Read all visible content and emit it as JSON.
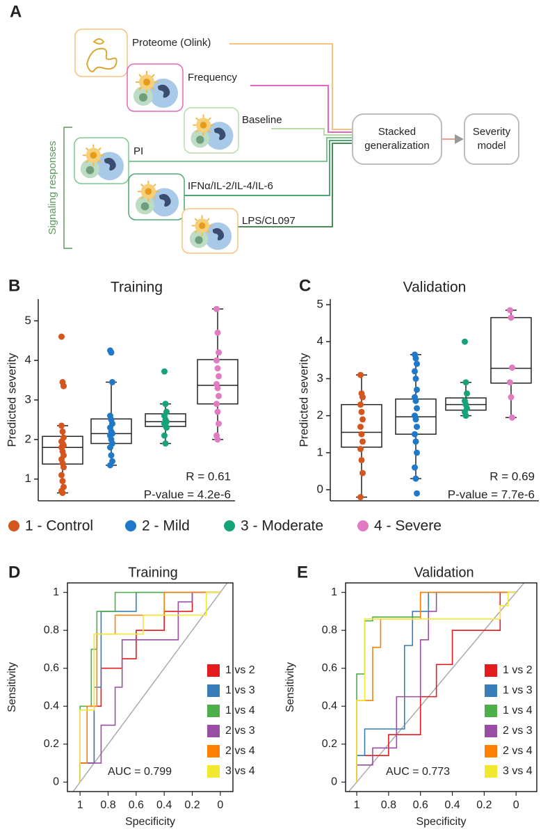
{
  "diagram": {
    "panel": "A",
    "nodes": [
      {
        "label": "Proteome (Olink)"
      },
      {
        "label": "Frequency"
      },
      {
        "label": "Baseline"
      },
      {
        "label": "PI"
      },
      {
        "label": "IFNα/IL-2/IL-4/IL-6"
      },
      {
        "label": "LPS/CL097"
      }
    ],
    "group_label": "Signaling responses",
    "combiner": [
      "Stacked",
      "generalization"
    ],
    "output": [
      "Severity",
      "model"
    ]
  },
  "groups": [
    {
      "name": "1 - Control",
      "color": "#d4561f"
    },
    {
      "name": "2 - Mild",
      "color": "#1f78c8"
    },
    {
      "name": "3 - Moderate",
      "color": "#16a37a"
    },
    {
      "name": "4 - Severe",
      "color": "#e17cc0"
    }
  ],
  "chart_data": [
    {
      "type": "box",
      "panel": "B",
      "title": "Training",
      "ylabel": "Predicted severity",
      "ylim": [
        0.45,
        5.55
      ],
      "yticks": [
        1,
        2,
        3,
        4,
        5
      ],
      "boxes": [
        {
          "q1": 1.38,
          "median": 1.8,
          "q3": 2.08,
          "whisker_low": 0.65,
          "whisker_high": 2.35,
          "points": [
            4.6,
            3.45,
            3.35,
            2.35,
            2.2,
            2.05,
            1.95,
            1.9,
            1.85,
            1.8,
            1.7,
            1.6,
            1.5,
            1.4,
            1.3,
            1.1,
            0.95,
            0.8,
            0.7,
            0.65
          ]
        },
        {
          "q1": 1.9,
          "median": 2.15,
          "q3": 2.52,
          "whisker_low": 1.35,
          "whisker_high": 3.45,
          "points": [
            4.25,
            4.2,
            3.45,
            2.6,
            2.5,
            2.4,
            2.3,
            2.2,
            2.15,
            2.1,
            2.0,
            1.9,
            1.8,
            1.6,
            1.45,
            1.35
          ]
        },
        {
          "q1": 2.33,
          "median": 2.45,
          "q3": 2.65,
          "whisker_low": 1.9,
          "whisker_high": 2.9,
          "points": [
            3.72,
            2.9,
            2.7,
            2.6,
            2.5,
            2.45,
            2.4,
            2.35,
            2.3,
            2.1,
            1.9
          ]
        },
        {
          "q1": 2.9,
          "median": 3.37,
          "q3": 4.02,
          "whisker_low": 2.0,
          "whisker_high": 5.3,
          "points": [
            5.3,
            4.7,
            4.2,
            4.0,
            3.8,
            3.6,
            3.4,
            3.3,
            3.1,
            2.9,
            2.7,
            2.4,
            2.1,
            2.0
          ]
        }
      ],
      "annotations": [
        "R = 0.61",
        "P-value = 4.2e-6"
      ]
    },
    {
      "type": "box",
      "panel": "C",
      "title": "Validation",
      "ylabel": "Predicted severity",
      "ylim": [
        -0.3,
        5.15
      ],
      "yticks": [
        0,
        1,
        2,
        3,
        4,
        5
      ],
      "boxes": [
        {
          "q1": 1.15,
          "median": 1.55,
          "q3": 2.3,
          "whisker_low": -0.2,
          "whisker_high": 3.1,
          "points": [
            3.1,
            2.6,
            2.5,
            2.3,
            2.1,
            1.9,
            1.7,
            1.5,
            1.3,
            1.1,
            0.8,
            0.45,
            -0.2
          ]
        },
        {
          "q1": 1.5,
          "median": 1.97,
          "q3": 2.45,
          "whisker_low": 0.3,
          "whisker_high": 3.65,
          "points": [
            3.65,
            3.55,
            3.4,
            3.2,
            3.0,
            2.7,
            2.5,
            2.4,
            2.2,
            2.0,
            1.9,
            1.7,
            1.5,
            1.3,
            1.0,
            0.6,
            0.3,
            -0.1
          ]
        },
        {
          "q1": 2.15,
          "median": 2.3,
          "q3": 2.48,
          "whisker_low": 2.0,
          "whisker_high": 2.9,
          "points": [
            4.0,
            2.9,
            2.6,
            2.4,
            2.3,
            2.2,
            2.1,
            2.0
          ]
        },
        {
          "q1": 2.88,
          "median": 3.28,
          "q3": 4.65,
          "whisker_low": 1.95,
          "whisker_high": 4.85,
          "points": [
            4.85,
            4.65,
            3.3,
            2.9,
            2.5,
            1.95
          ]
        }
      ],
      "annotations": [
        "R = 0.69",
        "P-value = 7.7e-6"
      ]
    },
    {
      "type": "roc",
      "panel": "D",
      "title": "Training",
      "xlabel": "Specificity",
      "ylabel": "Sensitivity",
      "xlim": [
        1.09,
        -0.09
      ],
      "ylim": [
        -0.05,
        1.05
      ],
      "xticks": [
        1,
        0.8,
        0.6,
        0.4,
        0.2,
        0
      ],
      "yticks": [
        0,
        0.2,
        0.4,
        0.6,
        0.8,
        1
      ],
      "series": [
        {
          "name": "1 vs 2",
          "color": "#e41a1c",
          "x": [
            1,
            1,
            0.9,
            0.9,
            0.85,
            0.85,
            0.7,
            0.7,
            0.6,
            0.6,
            0.4,
            0.4,
            0.2,
            0.2,
            0
          ],
          "values": [
            0,
            0.1,
            0.1,
            0.4,
            0.4,
            0.6,
            0.6,
            0.65,
            0.65,
            0.8,
            0.8,
            0.9,
            0.9,
            1,
            1
          ]
        },
        {
          "name": "1 vs 3",
          "color": "#377eb8",
          "x": [
            1,
            1,
            0.9,
            0.9,
            0.85,
            0.85,
            0.6,
            0.6,
            0
          ],
          "values": [
            0,
            0.1,
            0.1,
            0.5,
            0.5,
            0.9,
            0.9,
            1,
            1
          ]
        },
        {
          "name": "1 vs 4",
          "color": "#4daf4a",
          "x": [
            1,
            1,
            0.92,
            0.92,
            0.88,
            0.88,
            0.75,
            0.75,
            0
          ],
          "values": [
            0,
            0.4,
            0.4,
            0.7,
            0.7,
            0.9,
            0.9,
            1,
            1
          ]
        },
        {
          "name": "2 vs 3",
          "color": "#984ea3",
          "x": [
            1,
            1,
            0.85,
            0.85,
            0.75,
            0.75,
            0.7,
            0.7,
            0.3,
            0.3,
            0.2,
            0.2,
            0
          ],
          "values": [
            0,
            0.1,
            0.1,
            0.3,
            0.3,
            0.5,
            0.5,
            0.75,
            0.75,
            0.95,
            0.95,
            1,
            1
          ]
        },
        {
          "name": "2 vs 4",
          "color": "#ff7f00",
          "x": [
            1,
            1,
            0.95,
            0.95,
            0.88,
            0.88,
            0.75,
            0.75,
            0.4,
            0.4,
            0
          ],
          "values": [
            0,
            0.1,
            0.1,
            0.4,
            0.4,
            0.78,
            0.78,
            0.88,
            0.88,
            1,
            1
          ]
        },
        {
          "name": "3 vs 4",
          "color": "#f2e830",
          "x": [
            1,
            1,
            0.9,
            0.9,
            0.55,
            0.55,
            0.1,
            0.1,
            0
          ],
          "values": [
            0,
            0.38,
            0.38,
            0.78,
            0.78,
            0.88,
            0.88,
            1,
            1
          ]
        }
      ],
      "annotation": "AUC = 0.799"
    },
    {
      "type": "roc",
      "panel": "E",
      "title": "Validation",
      "xlabel": "Specificity",
      "ylabel": "Sensitivity",
      "xlim": [
        1.07,
        -0.13
      ],
      "ylim": [
        -0.05,
        1.05
      ],
      "xticks": [
        1,
        0.8,
        0.6,
        0.4,
        0.2,
        0
      ],
      "yticks": [
        0,
        0.2,
        0.4,
        0.6,
        0.8,
        1
      ],
      "series": [
        {
          "name": "1 vs 2",
          "color": "#e41a1c",
          "x": [
            1,
            1,
            0.8,
            0.8,
            0.6,
            0.6,
            0.5,
            0.5,
            0.4,
            0.4,
            0.1,
            0.1,
            0
          ],
          "values": [
            0,
            0.14,
            0.14,
            0.25,
            0.25,
            0.45,
            0.45,
            0.62,
            0.62,
            0.8,
            0.8,
            1,
            1
          ]
        },
        {
          "name": "1 vs 3",
          "color": "#377eb8",
          "x": [
            1,
            1,
            0.95,
            0.95,
            0.7,
            0.7,
            0.65,
            0.65,
            0.55,
            0.55,
            0
          ],
          "values": [
            0,
            0.14,
            0.14,
            0.28,
            0.28,
            0.72,
            0.72,
            0.9,
            0.9,
            1,
            1
          ]
        },
        {
          "name": "1 vs 4",
          "color": "#4daf4a",
          "x": [
            1,
            1,
            0.95,
            0.95,
            0.9,
            0.9,
            0.6,
            0.6,
            0
          ],
          "values": [
            0,
            0.57,
            0.57,
            0.85,
            0.85,
            0.87,
            0.87,
            1,
            1
          ]
        },
        {
          "name": "2 vs 3",
          "color": "#984ea3",
          "x": [
            1,
            1,
            0.9,
            0.9,
            0.75,
            0.75,
            0.6,
            0.6,
            0.55,
            0.55,
            0.5,
            0.5,
            0
          ],
          "values": [
            0,
            0.09,
            0.09,
            0.18,
            0.18,
            0.45,
            0.45,
            0.75,
            0.75,
            0.9,
            0.9,
            1,
            1
          ]
        },
        {
          "name": "2 vs 4",
          "color": "#ff7f00",
          "x": [
            1,
            1,
            0.9,
            0.9,
            0.85,
            0.85,
            0.6,
            0.6,
            0
          ],
          "values": [
            0,
            0.43,
            0.43,
            0.71,
            0.71,
            0.86,
            0.86,
            1,
            1
          ]
        },
        {
          "name": "3 vs 4",
          "color": "#f2e830",
          "x": [
            1,
            1,
            0.95,
            0.95,
            0.1,
            0.1,
            0.05,
            0.05,
            0
          ],
          "values": [
            0,
            0.43,
            0.43,
            0.86,
            0.86,
            0.93,
            0.93,
            1,
            1
          ]
        }
      ],
      "annotation": "AUC = 0.773"
    }
  ]
}
